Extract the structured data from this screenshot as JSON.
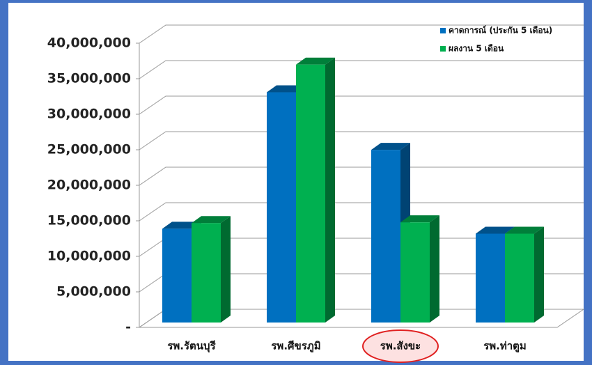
{
  "chart_data": {
    "type": "bar3d",
    "categories": [
      "รพ.รัตนบุรี",
      "รพ.ศีขรภูมิ",
      "รพ.สังขะ",
      "รพ.ท่าตูม"
    ],
    "series": [
      {
        "name": "คาดการณ์ (ประกัน 5 เดือน)",
        "color": "#0070c0",
        "values": [
          13200000,
          32400000,
          24300000,
          12500000
        ]
      },
      {
        "name": "ผลงาน 5 เดือน",
        "color": "#00b050",
        "values": [
          14000000,
          36300000,
          14100000,
          12500000
        ]
      }
    ],
    "ylim": [
      0,
      40000000
    ],
    "yticks": [
      {
        "value": 0,
        "label": "-"
      },
      {
        "value": 5000000,
        "label": "5,000,000"
      },
      {
        "value": 10000000,
        "label": "10,000,000"
      },
      {
        "value": 15000000,
        "label": "15,000,000"
      },
      {
        "value": 20000000,
        "label": "20,000,000"
      },
      {
        "value": 25000000,
        "label": "25,000,000"
      },
      {
        "value": 30000000,
        "label": "30,000,000"
      },
      {
        "value": 35000000,
        "label": "35,000,000"
      },
      {
        "value": 40000000,
        "label": "40,000,000"
      }
    ],
    "grid": true,
    "legend": "upper right"
  }
}
